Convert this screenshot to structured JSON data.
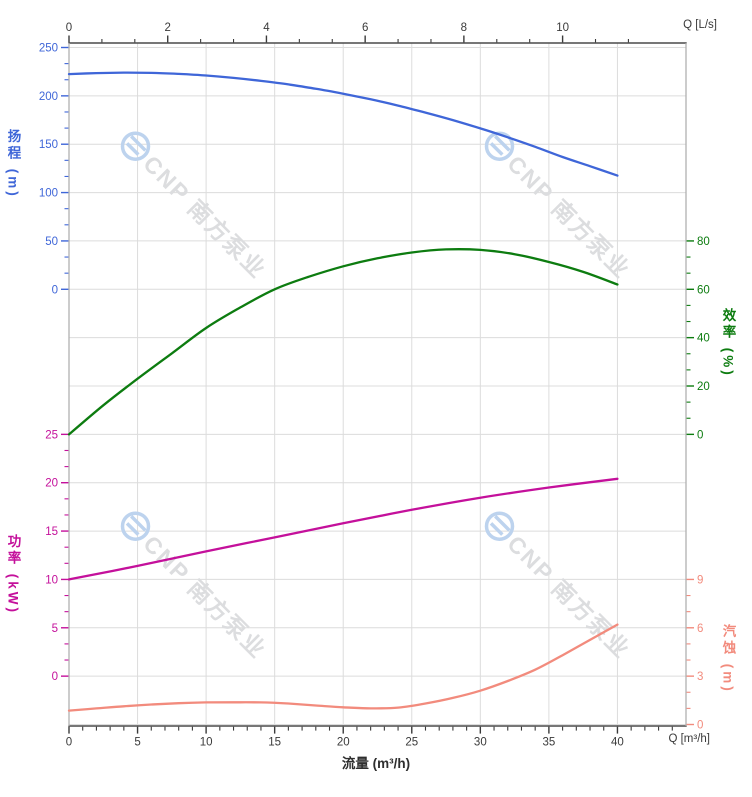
{
  "watermark": {
    "text": "CNP 南方泵业",
    "logo": "cnp-wave-logo"
  },
  "corner_units": {
    "top_right": "Q [L/s]",
    "bottom_right": "Q [m³/h]"
  },
  "axis_titles": {
    "head": "扬程 (m)",
    "power": "功率 (kW)",
    "eff": "效率 (%)",
    "npsh": "汽蚀 (m)"
  },
  "colors": {
    "head": "#3f66d8",
    "eff": "#0d7c10",
    "power": "#c4109b",
    "npsh": "#f28b7d",
    "axis_dark": "#3a3a3a",
    "grid": "#dcdcdc",
    "border_h": "#4a4a4a",
    "border_v": "#ababab",
    "watermark_text": "#dcdddf",
    "watermark_logo": "#bdd3ee"
  },
  "chart_data": {
    "type": "line",
    "title": "",
    "xlabel": "流量 (m³/h)",
    "x_axis_bottom": {
      "unit": "m³/h",
      "ticks": [
        0,
        5,
        10,
        15,
        20,
        25,
        30,
        35,
        40
      ],
      "range": [
        0,
        45
      ],
      "minor_step": 1
    },
    "x_axis_top": {
      "unit": "L/s",
      "ticks": [
        0,
        2,
        4,
        6,
        8,
        10
      ],
      "minor_interval_Ls": 0.6667,
      "max_minor_Ls": 11.34
    },
    "y_axes": {
      "head": {
        "label": "扬程",
        "unit": "m",
        "side": "left",
        "ticks": [
          250,
          200,
          150,
          100,
          50,
          0
        ]
      },
      "eff": {
        "label": "效率",
        "unit": "%",
        "side": "right",
        "ticks": [
          80,
          60,
          40,
          20,
          0
        ]
      },
      "power": {
        "label": "功率",
        "unit": "kW",
        "side": "left",
        "ticks": [
          25,
          20,
          15,
          10,
          5,
          0
        ]
      },
      "npsh": {
        "label": "汽蚀",
        "unit": "m",
        "side": "right",
        "ticks": [
          9,
          6,
          3,
          0
        ]
      }
    },
    "series": [
      {
        "name": "扬程",
        "axis": "head",
        "unit": "m",
        "x": [
          0,
          2,
          4,
          6,
          8,
          10,
          12,
          14,
          16,
          18,
          20,
          22,
          24,
          26,
          28,
          30,
          32,
          34,
          36,
          38,
          40
        ],
        "values": [
          222.5,
          223.5,
          224,
          223.7,
          222.7,
          221,
          218.6,
          215.5,
          211.8,
          207.3,
          202.2,
          196.4,
          189.9,
          182.7,
          174.9,
          166.4,
          157.2,
          147.3,
          136.8,
          127.3,
          117.5
        ]
      },
      {
        "name": "效率",
        "axis": "eff",
        "unit": "%",
        "x": [
          0,
          2.5,
          5,
          7.5,
          10,
          12.5,
          15,
          17.5,
          20,
          22.5,
          25,
          27.5,
          30,
          32.5,
          35,
          37.5,
          40
        ],
        "values": [
          0,
          12,
          23,
          33.5,
          44,
          52.5,
          60,
          65.2,
          69.5,
          72.8,
          75.2,
          76.5,
          76.3,
          74.5,
          71.3,
          67.2,
          62
        ]
      },
      {
        "name": "功率",
        "axis": "power",
        "unit": "kW",
        "x": [
          0,
          5,
          10,
          15,
          20,
          25,
          30,
          35,
          40
        ],
        "values": [
          10,
          11.4,
          12.9,
          14.35,
          15.8,
          17.2,
          18.45,
          19.5,
          20.4
        ]
      },
      {
        "name": "汽蚀",
        "axis": "npsh",
        "unit": "m",
        "x": [
          0,
          2,
          4,
          6,
          8,
          10,
          12,
          14,
          16,
          18,
          20,
          22,
          24,
          26,
          28,
          30,
          32,
          34,
          36,
          38,
          40
        ],
        "values": [
          0.86,
          1.0,
          1.13,
          1.24,
          1.32,
          1.37,
          1.38,
          1.37,
          1.3,
          1.18,
          1.07,
          1.0,
          1.05,
          1.3,
          1.65,
          2.1,
          2.7,
          3.4,
          4.3,
          5.25,
          6.2
        ]
      }
    ]
  }
}
